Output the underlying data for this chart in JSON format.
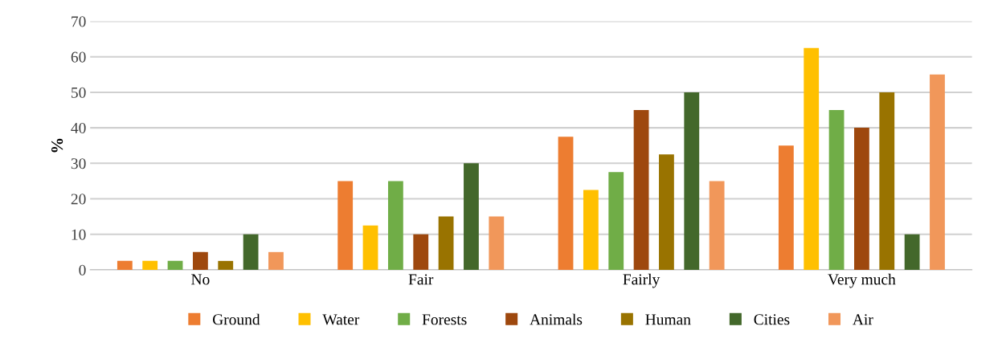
{
  "chart_data": {
    "type": "bar",
    "ylabel": "%",
    "categories": [
      "No",
      "Fair",
      "Fairly",
      "Very much"
    ],
    "series": [
      {
        "name": "Ground",
        "color": "#ed7d31",
        "values": [
          2.5,
          25,
          37.5,
          35
        ]
      },
      {
        "name": "Water",
        "color": "#ffc000",
        "values": [
          2.5,
          12.5,
          22.5,
          62.5
        ]
      },
      {
        "name": "Forests",
        "color": "#70ad47",
        "values": [
          2.5,
          25,
          27.5,
          45
        ]
      },
      {
        "name": "Animals",
        "color": "#9e480e",
        "values": [
          5,
          10,
          45,
          40
        ]
      },
      {
        "name": "Human",
        "color": "#997300",
        "values": [
          2.5,
          15,
          32.5,
          50
        ]
      },
      {
        "name": "Cities",
        "color": "#43682b",
        "values": [
          10,
          30,
          50,
          10
        ]
      },
      {
        "name": "Air",
        "color": "#f1975a",
        "values": [
          5,
          15,
          25,
          55
        ]
      }
    ],
    "ylim": [
      0,
      70
    ],
    "yticks": [
      0,
      10,
      20,
      30,
      40,
      50,
      60,
      70
    ],
    "grid": "y",
    "legend": "bottom"
  }
}
